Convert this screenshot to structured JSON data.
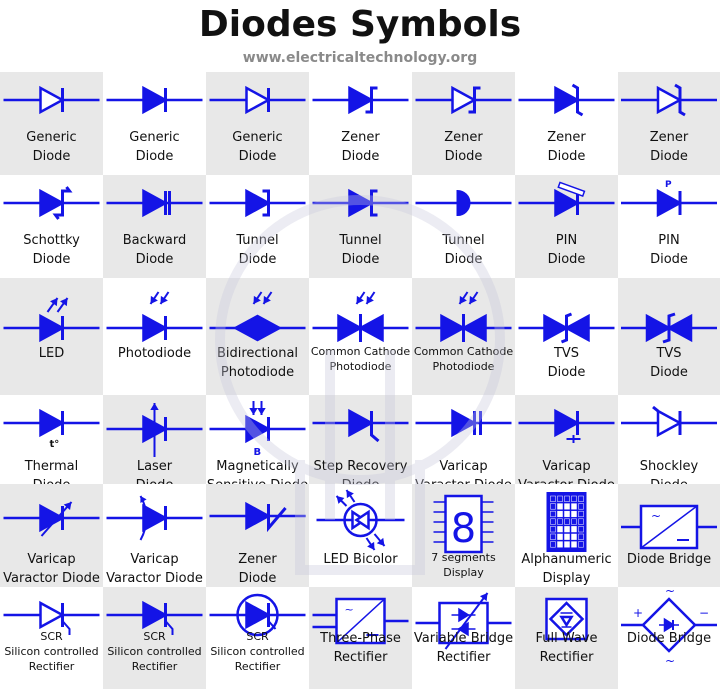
{
  "header": {
    "title": "Diodes Symbols",
    "subtitle": "www.electricaltechnology.org"
  },
  "colors": {
    "symbol": "#1414e6",
    "gray_cell": "#e8e8e8",
    "text": "#111111"
  },
  "cells": [
    {
      "row": 0,
      "col": 0,
      "symbol": "generic-outline",
      "label": [
        "Generic",
        "Diode"
      ]
    },
    {
      "row": 0,
      "col": 1,
      "symbol": "generic-filled",
      "label": [
        "Generic",
        "Diode"
      ]
    },
    {
      "row": 0,
      "col": 2,
      "symbol": "generic-outline",
      "label": [
        "Generic",
        "Diode"
      ]
    },
    {
      "row": 0,
      "col": 3,
      "symbol": "zener-filled",
      "label": [
        "Zener",
        "Diode"
      ]
    },
    {
      "row": 0,
      "col": 4,
      "symbol": "zener-outline",
      "label": [
        "Zener",
        "Diode"
      ]
    },
    {
      "row": 0,
      "col": 5,
      "symbol": "zener-filled-z",
      "label": [
        "Zener",
        "Diode"
      ]
    },
    {
      "row": 0,
      "col": 6,
      "symbol": "zener-outline-z",
      "label": [
        "Zener",
        "Diode"
      ]
    },
    {
      "row": 1,
      "col": 0,
      "symbol": "schottky",
      "label": [
        "Schottky",
        "Diode"
      ]
    },
    {
      "row": 1,
      "col": 1,
      "symbol": "backward",
      "label": [
        "Backward",
        "Diode"
      ]
    },
    {
      "row": 1,
      "col": 2,
      "symbol": "tunnel-bracket",
      "label": [
        "Tunnel",
        "Diode"
      ]
    },
    {
      "row": 1,
      "col": 3,
      "symbol": "tunnel-bracket-r",
      "label": [
        "Tunnel",
        "Diode"
      ]
    },
    {
      "row": 1,
      "col": 4,
      "symbol": "tunnel-half",
      "label": [
        "Tunnel",
        "Diode"
      ]
    },
    {
      "row": 1,
      "col": 5,
      "symbol": "pin-hatched",
      "label": [
        "PIN",
        "Diode"
      ]
    },
    {
      "row": 1,
      "col": 6,
      "symbol": "pin-p",
      "label": [
        "PIN",
        "Diode"
      ],
      "tag": "P"
    },
    {
      "row": 2,
      "col": 0,
      "symbol": "led",
      "label": [
        "LED"
      ]
    },
    {
      "row": 2,
      "col": 1,
      "symbol": "photodiode",
      "label": [
        "Photodiode"
      ]
    },
    {
      "row": 2,
      "col": 2,
      "symbol": "bidirectional",
      "label": [
        "Bidirectional",
        "Photodiode"
      ]
    },
    {
      "row": 2,
      "col": 3,
      "symbol": "common-cathode",
      "label": [
        "Common Cathode",
        "Photodiode"
      ],
      "small": true
    },
    {
      "row": 2,
      "col": 4,
      "symbol": "common-cathode",
      "label": [
        "Common Cathode",
        "Photodiode"
      ],
      "small": true
    },
    {
      "row": 2,
      "col": 5,
      "symbol": "tvs",
      "label": [
        "TVS",
        "Diode"
      ]
    },
    {
      "row": 2,
      "col": 6,
      "symbol": "tvs-z",
      "label": [
        "TVS",
        "Diode"
      ]
    },
    {
      "row": 3,
      "col": 0,
      "symbol": "thermal",
      "label": [
        "Thermal",
        "Diode"
      ],
      "tag": "t°"
    },
    {
      "row": 3,
      "col": 1,
      "symbol": "laser",
      "label": [
        "Laser",
        "Diode"
      ]
    },
    {
      "row": 3,
      "col": 2,
      "symbol": "magnetic",
      "label": [
        "Magnetically",
        "Sensitive Diode"
      ],
      "tag": "B"
    },
    {
      "row": 3,
      "col": 3,
      "symbol": "step-recovery",
      "label": [
        "Step Recovery",
        "Diode"
      ]
    },
    {
      "row": 3,
      "col": 4,
      "symbol": "varicap-cap",
      "label": [
        "Varicap",
        "Varactor Diode"
      ]
    },
    {
      "row": 3,
      "col": 5,
      "symbol": "varicap-cap2",
      "label": [
        "Varicap",
        "Varactor Diode"
      ]
    },
    {
      "row": 3,
      "col": 6,
      "symbol": "shockley",
      "label": [
        "Shockley",
        "Diode"
      ]
    },
    {
      "row": 4,
      "col": 0,
      "symbol": "varicap-arrow",
      "label": [
        "Varicap",
        "Varactor Diode"
      ]
    },
    {
      "row": 4,
      "col": 1,
      "symbol": "varicap-arc",
      "label": [
        "Varicap",
        "Varactor Diode"
      ]
    },
    {
      "row": 4,
      "col": 2,
      "symbol": "zener-s",
      "label": [
        "Zener",
        "Diode"
      ]
    },
    {
      "row": 4,
      "col": 3,
      "symbol": "led-bicolor",
      "label": [
        "LED Bicolor"
      ]
    },
    {
      "row": 4,
      "col": 4,
      "symbol": "seven-seg",
      "label": [
        "7 segments",
        "Display"
      ],
      "small": true,
      "tag": "8"
    },
    {
      "row": 4,
      "col": 5,
      "symbol": "alphanumeric",
      "label": [
        "Alphanumeric",
        "Display"
      ]
    },
    {
      "row": 4,
      "col": 6,
      "symbol": "bridge-box",
      "label": [
        "Diode Bridge"
      ]
    },
    {
      "row": 5,
      "col": 0,
      "symbol": "scr",
      "label": [
        "SCR",
        "Silicon controlled",
        "Rectifier"
      ],
      "small": true
    },
    {
      "row": 5,
      "col": 1,
      "symbol": "scr-filled",
      "label": [
        "SCR",
        "Silicon controlled",
        "Rectifier"
      ],
      "small": true
    },
    {
      "row": 5,
      "col": 2,
      "symbol": "scr-circle",
      "label": [
        "SCR",
        "Silicon controlled",
        "Rectifier"
      ],
      "small": true
    },
    {
      "row": 5,
      "col": 3,
      "symbol": "three-phase",
      "label": [
        "Three-Phase",
        "Rectifier"
      ]
    },
    {
      "row": 5,
      "col": 4,
      "symbol": "variable-bridge",
      "label": [
        "Variable Bridge",
        "Rectifier"
      ]
    },
    {
      "row": 5,
      "col": 5,
      "symbol": "full-wave",
      "label": [
        "Full Wave",
        "Rectifier"
      ]
    },
    {
      "row": 5,
      "col": 6,
      "symbol": "bridge-diamond",
      "label": [
        "Diode Bridge"
      ]
    }
  ]
}
